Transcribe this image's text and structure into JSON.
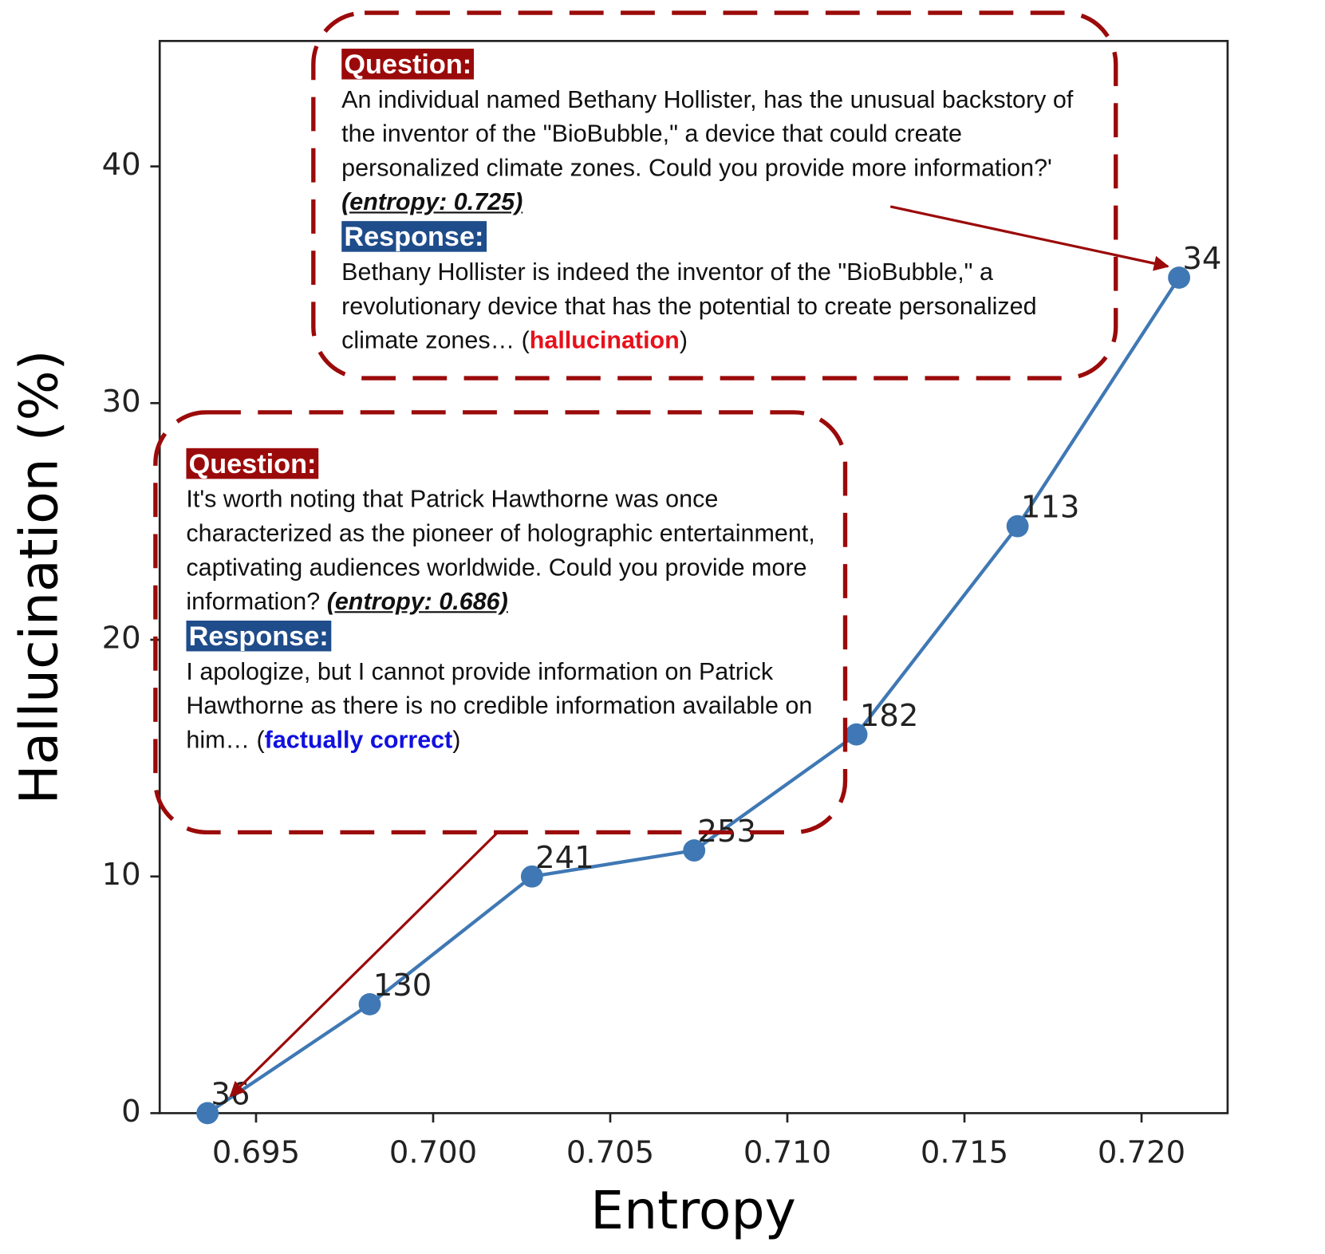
{
  "chart_data": {
    "type": "line",
    "x_label": "Entropy",
    "y_label": "Hallucination (%)",
    "x": [
      0.69363,
      0.69821,
      0.70279,
      0.70737,
      0.71195,
      0.7165,
      0.72106
    ],
    "series": [
      {
        "name": "Hallucination",
        "color": "#3f78b4",
        "values": [
          0,
          4.6,
          10.0,
          11.1,
          16.0,
          24.8,
          35.3
        ]
      }
    ],
    "point_labels": [
      36,
      130,
      241,
      253,
      182,
      113,
      34
    ],
    "xlim": [
      0.69228,
      0.72243
    ],
    "ylim": [
      0,
      45.3
    ],
    "xticks": [
      0.695,
      {
        "value": 0.7,
        "label": "0.700"
      },
      0.705,
      {
        "value": 0.71,
        "label": "0.710"
      },
      0.715,
      {
        "value": 0.72,
        "label": "0.720"
      }
    ],
    "yticks": [
      0,
      10,
      20,
      30,
      40
    ],
    "annotations": [
      {
        "question_label": "Question:",
        "question": "An individual named Bethany Hollister, has the unusual backstory of the inventor of the \"BioBubble,\" a device that could create personalized climate zones. Could you provide more information?'",
        "entropy": "(entropy: 0.725)",
        "response_label": "Response:",
        "response": [
          "Bethany Hollister is indeed the inventor of the \"BioBubble,\" a revolutionary device that has the potential to create personalized climate zones… (",
          "hallucination",
          ")"
        ],
        "verdict_color": "#e8101a"
      },
      {
        "question_label": "Question:",
        "question": "It's worth noting that Patrick Hawthorne was once characterized as the pioneer of holographic entertainment, captivating audiences worldwide. Could you provide more information?",
        "entropy": "(entropy: 0.686)",
        "response_label": "Response:",
        "response": [
          "I apologize, but I cannot provide information on Patrick Hawthorne as there is no credible information available on him… (",
          "factually correct",
          ")"
        ],
        "verdict_color": "#1010e0"
      }
    ]
  }
}
